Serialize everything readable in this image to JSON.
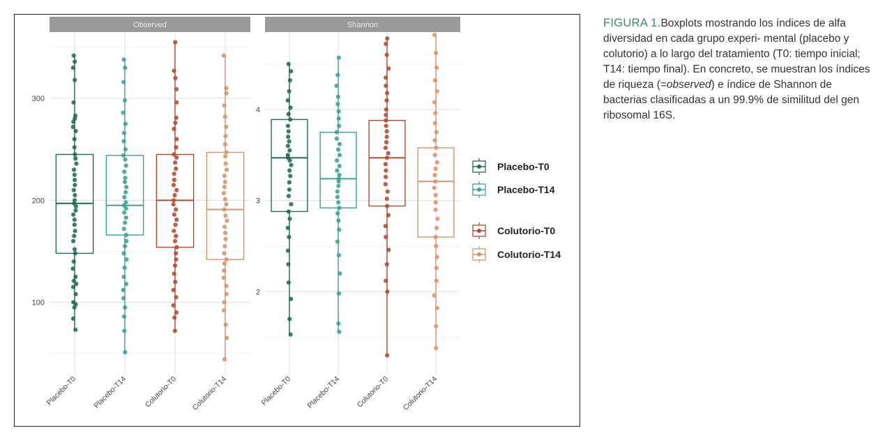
{
  "caption": {
    "label": "FIGURA 1.",
    "text_before": "Boxplots mostrando los índices de alfa diversidad en cada grupo experi- mental (placebo y colutorio) a lo largo del tratamiento (T0: tiempo inicial; T14: tiempo final). En concreto, se muestran los índices de riqueza (=",
    "text_italic": "observed",
    "text_after": ") e índice de Shannon de bacterias clasificadas a un 99.9% de similitud del gen ribosomal 16S."
  },
  "colors": {
    "Placebo-T0": "#1f6b55",
    "Placebo-T14": "#3aa096",
    "Colutorio-T0": "#b4492e",
    "Colutorio-T14": "#d9936a",
    "strip": "#9a9a9a",
    "grid_major": "#e3e3e3",
    "grid_minor": "#f1f1f1"
  },
  "chart_data": [
    {
      "type": "box",
      "panel": "Observed",
      "categories": [
        "Placebo-T0",
        "Placebo-T14",
        "Colutorio-T0",
        "Colutorio-T14"
      ],
      "ylim": [
        30,
        365
      ],
      "yticks": [
        100,
        200,
        300
      ],
      "boxes": [
        {
          "name": "Placebo-T0",
          "q1": 148,
          "median": 197,
          "q3": 245,
          "min": 73,
          "max": 342,
          "points": [
            73,
            84,
            95,
            98,
            100,
            108,
            115,
            118,
            121,
            125,
            133,
            140,
            148,
            152,
            160,
            165,
            170,
            176,
            181,
            186,
            190,
            194,
            197,
            200,
            205,
            210,
            215,
            220,
            225,
            230,
            236,
            241,
            245,
            252,
            260,
            268,
            272,
            277,
            280,
            283,
            296,
            318,
            330,
            336,
            342
          ]
        },
        {
          "name": "Placebo-T14",
          "q1": 166,
          "median": 195,
          "q3": 244,
          "min": 51,
          "max": 338,
          "points": [
            51,
            72,
            86,
            95,
            104,
            112,
            118,
            125,
            134,
            142,
            148,
            155,
            160,
            166,
            172,
            178,
            183,
            188,
            192,
            195,
            198,
            203,
            208,
            213,
            218,
            222,
            228,
            234,
            240,
            244,
            250,
            258,
            266,
            275,
            286,
            298,
            316,
            330,
            338
          ]
        },
        {
          "name": "Colutorio-T0",
          "q1": 154,
          "median": 200,
          "q3": 245,
          "min": 72,
          "max": 355,
          "points": [
            72,
            85,
            90,
            97,
            105,
            112,
            120,
            128,
            136,
            142,
            148,
            154,
            160,
            165,
            170,
            176,
            181,
            186,
            191,
            196,
            200,
            205,
            210,
            215,
            220,
            226,
            231,
            237,
            242,
            245,
            252,
            260,
            270,
            276,
            281,
            296,
            309,
            320,
            327,
            355
          ]
        },
        {
          "name": "Colutorio-T14",
          "q1": 142,
          "median": 191,
          "q3": 247,
          "min": 44,
          "max": 342,
          "points": [
            44,
            65,
            78,
            92,
            100,
            108,
            116,
            124,
            131,
            138,
            142,
            148,
            155,
            162,
            168,
            174,
            180,
            185,
            191,
            196,
            201,
            207,
            213,
            218,
            224,
            230,
            236,
            243,
            247,
            255,
            263,
            272,
            282,
            293,
            305,
            310,
            342
          ]
        }
      ]
    },
    {
      "type": "box",
      "panel": "Shannon",
      "categories": [
        "Placebo-T0",
        "Placebo-T14",
        "Colutorio-T0",
        "Colutorio-T14"
      ],
      "ylim": [
        1.1,
        4.85
      ],
      "yticks": [
        2,
        3,
        4
      ],
      "boxes": [
        {
          "name": "Placebo-T0",
          "q1": 2.88,
          "median": 3.47,
          "q3": 3.89,
          "min": 1.53,
          "max": 4.5,
          "points": [
            1.53,
            1.7,
            1.92,
            2.1,
            2.3,
            2.45,
            2.6,
            2.7,
            2.8,
            2.88,
            2.96,
            3.05,
            3.12,
            3.2,
            3.27,
            3.33,
            3.39,
            3.44,
            3.47,
            3.5,
            3.55,
            3.6,
            3.65,
            3.7,
            3.76,
            3.82,
            3.89,
            3.95,
            4.02,
            4.1,
            4.2,
            4.32,
            4.42,
            4.5
          ]
        },
        {
          "name": "Placebo-T14",
          "q1": 2.92,
          "median": 3.24,
          "q3": 3.75,
          "min": 1.56,
          "max": 4.57,
          "points": [
            1.56,
            1.65,
            1.98,
            2.2,
            2.4,
            2.55,
            2.68,
            2.78,
            2.86,
            2.92,
            2.98,
            3.04,
            3.1,
            3.16,
            3.21,
            3.24,
            3.28,
            3.33,
            3.38,
            3.44,
            3.5,
            3.56,
            3.62,
            3.68,
            3.75,
            3.82,
            3.9,
            3.98,
            4.06,
            4.14,
            4.26,
            4.38,
            4.57
          ]
        },
        {
          "name": "Colutorio-T0",
          "q1": 2.94,
          "median": 3.47,
          "q3": 3.88,
          "min": 1.3,
          "max": 4.78,
          "points": [
            1.3,
            2.0,
            2.12,
            2.3,
            2.46,
            2.6,
            2.72,
            2.84,
            2.94,
            3.02,
            3.1,
            3.18,
            3.26,
            3.33,
            3.4,
            3.47,
            3.52,
            3.58,
            3.64,
            3.7,
            3.76,
            3.82,
            3.88,
            3.94,
            4.0,
            4.1,
            4.18,
            4.26,
            4.35,
            4.45,
            4.6,
            4.72,
            4.78
          ]
        },
        {
          "name": "Colutorio-T14",
          "q1": 2.6,
          "median": 3.21,
          "q3": 3.58,
          "min": 1.38,
          "max": 4.82,
          "points": [
            1.38,
            1.62,
            1.82,
            1.96,
            2.12,
            2.26,
            2.38,
            2.5,
            2.6,
            2.7,
            2.8,
            2.9,
            2.98,
            3.06,
            3.14,
            3.21,
            3.28,
            3.35,
            3.42,
            3.5,
            3.58,
            3.66,
            3.75,
            3.85,
            3.96,
            4.08,
            4.2,
            4.32,
            4.46,
            4.62,
            4.82
          ]
        }
      ]
    }
  ],
  "legend": {
    "placement": "right",
    "entries": [
      "Placebo-T0",
      "Placebo-T14",
      "Colutorio-T0",
      "Colutorio-T14"
    ]
  }
}
